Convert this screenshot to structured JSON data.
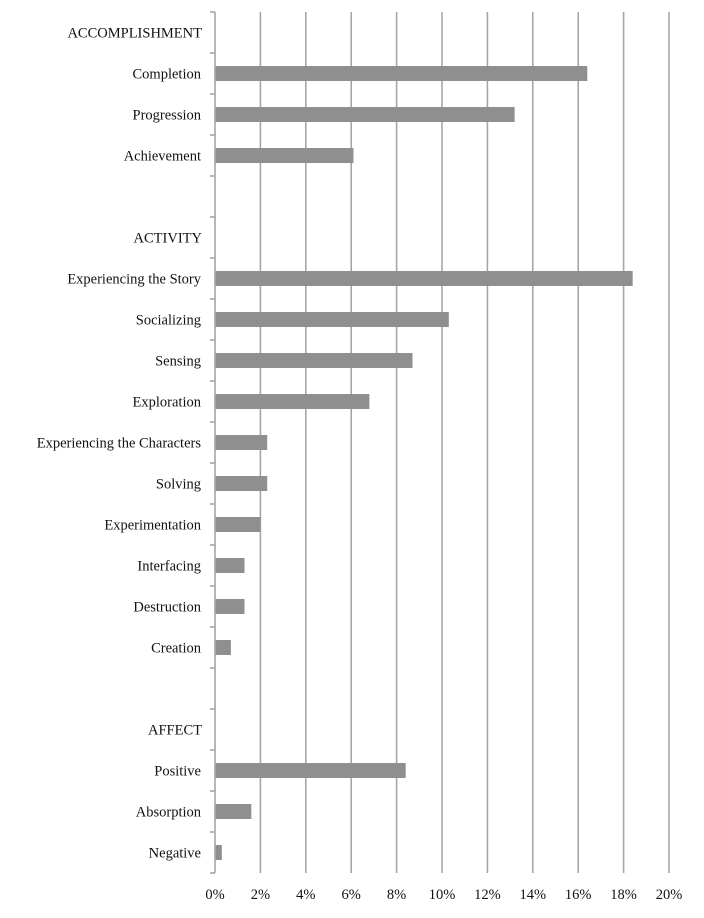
{
  "chart_data": {
    "type": "bar",
    "orientation": "horizontal",
    "title": "",
    "xlabel": "",
    "ylabel": "",
    "xlim": [
      0,
      20
    ],
    "x_ticks": [
      "0%",
      "2%",
      "4%",
      "6%",
      "8%",
      "10%",
      "12%",
      "14%",
      "16%",
      "18%",
      "20%"
    ],
    "grid": true,
    "categories": [
      "ACCOMPLISHMENT",
      "Completion",
      "Progression",
      "Achievement",
      "",
      "ACTIVITY",
      "Experiencing the Story",
      "Socializing",
      "Sensing",
      "Exploration",
      "Experiencing the Characters",
      "Solving",
      "Experimentation",
      "Interfacing",
      "Destruction",
      "Creation",
      "",
      "AFFECT",
      "Positive",
      "Absorption",
      "Negative"
    ],
    "values": [
      null,
      16.4,
      13.2,
      6.1,
      null,
      null,
      18.4,
      10.3,
      8.7,
      6.8,
      2.3,
      2.3,
      2.0,
      1.3,
      1.3,
      0.7,
      null,
      null,
      8.4,
      1.6,
      0.3
    ],
    "bar_color": "#8f8f8f",
    "grid_color": "#a6a6a6"
  }
}
